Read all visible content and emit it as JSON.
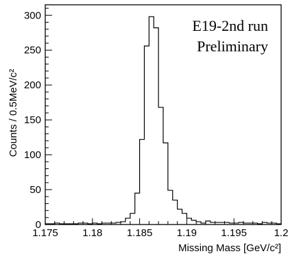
{
  "chart_data": {
    "type": "bar",
    "style": "step-histogram",
    "xlabel": "Missing Mass [GeV/c²]",
    "ylabel": "Counts / 0.5MeV/c²",
    "xlim": [
      1.175,
      1.2
    ],
    "ylim": [
      0,
      315
    ],
    "x_ticks": [
      {
        "value": 1.175,
        "label": "1.175"
      },
      {
        "value": 1.18,
        "label": "1.18"
      },
      {
        "value": 1.185,
        "label": "1.185"
      },
      {
        "value": 1.19,
        "label": "1.19"
      },
      {
        "value": 1.195,
        "label": "1.195"
      },
      {
        "value": 1.2,
        "label": "1.2"
      }
    ],
    "y_ticks": [
      {
        "value": 0,
        "label": "0"
      },
      {
        "value": 50,
        "label": "50"
      },
      {
        "value": 100,
        "label": "100"
      },
      {
        "value": 150,
        "label": "150"
      },
      {
        "value": 200,
        "label": "200"
      },
      {
        "value": 250,
        "label": "250"
      },
      {
        "value": 300,
        "label": "300"
      }
    ],
    "bin_width": 0.0005,
    "bin_start": 1.175,
    "values": [
      1,
      1,
      2,
      1,
      1,
      1,
      1,
      2,
      2,
      1,
      2,
      1,
      2,
      2,
      2,
      3,
      4,
      9,
      16,
      45,
      122,
      256,
      298,
      282,
      168,
      117,
      49,
      35,
      22,
      16,
      9,
      6,
      4,
      2,
      5,
      3,
      3,
      3,
      3,
      2,
      2,
      3,
      2,
      2,
      2,
      1,
      3,
      2,
      2,
      1
    ],
    "annotations": [
      "E19-2nd run",
      "Preliminary"
    ],
    "grid": false,
    "legend": "none"
  }
}
